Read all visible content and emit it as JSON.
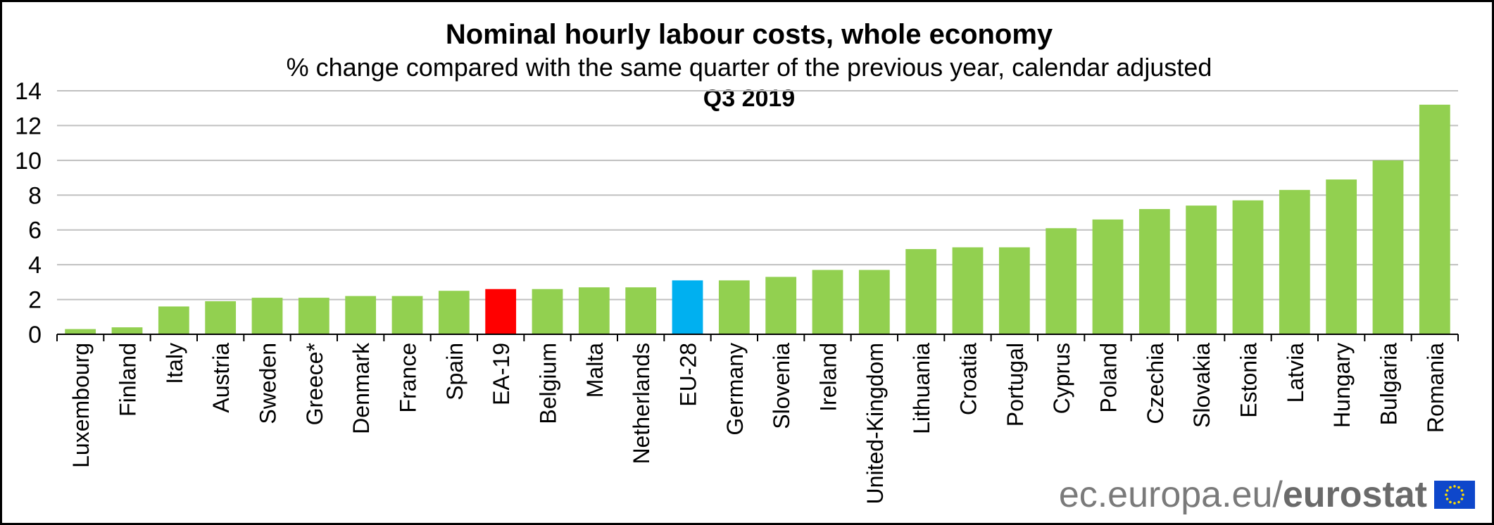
{
  "chart_data": {
    "type": "bar",
    "title": "Nominal hourly labour costs, whole economy",
    "subtitle": "% change compared with the same quarter of the previous year, calendar adjusted",
    "period": "Q3 2019",
    "xlabel": "",
    "ylabel": "",
    "ylim": [
      0,
      14
    ],
    "yticks": [
      "0",
      "2",
      "4",
      "6",
      "8",
      "10",
      "12",
      "14"
    ],
    "grid": true,
    "categories": [
      "Luxembourg",
      "Finland",
      "Italy",
      "Austria",
      "Sweden",
      "Greece*",
      "Denmark",
      "France",
      "Spain",
      "EA-19",
      "Belgium",
      "Malta",
      "Netherlands",
      "EU-28",
      "Germany",
      "Slovenia",
      "Ireland",
      "United-Kingdom",
      "Lithuania",
      "Croatia",
      "Portugal",
      "Cyprus",
      "Poland",
      "Czechia",
      "Slovakia",
      "Estonia",
      "Latvia",
      "Hungary",
      "Bulgaria",
      "Romania"
    ],
    "values": [
      0.3,
      0.4,
      1.6,
      1.9,
      2.1,
      2.1,
      2.2,
      2.2,
      2.5,
      2.6,
      2.6,
      2.7,
      2.7,
      3.1,
      3.1,
      3.3,
      3.7,
      3.7,
      4.9,
      5.0,
      5.0,
      6.1,
      6.6,
      7.2,
      7.4,
      7.7,
      8.3,
      8.9,
      10.0,
      13.2
    ],
    "colors": {
      "default": "#92d050",
      "EA-19": "#ff0000",
      "EU-28": "#00b0f0",
      "grid": "#c0c0c0",
      "axis": "#000000"
    }
  },
  "footer": {
    "source": "ec.europa.eu/",
    "brand": "eurostat"
  }
}
